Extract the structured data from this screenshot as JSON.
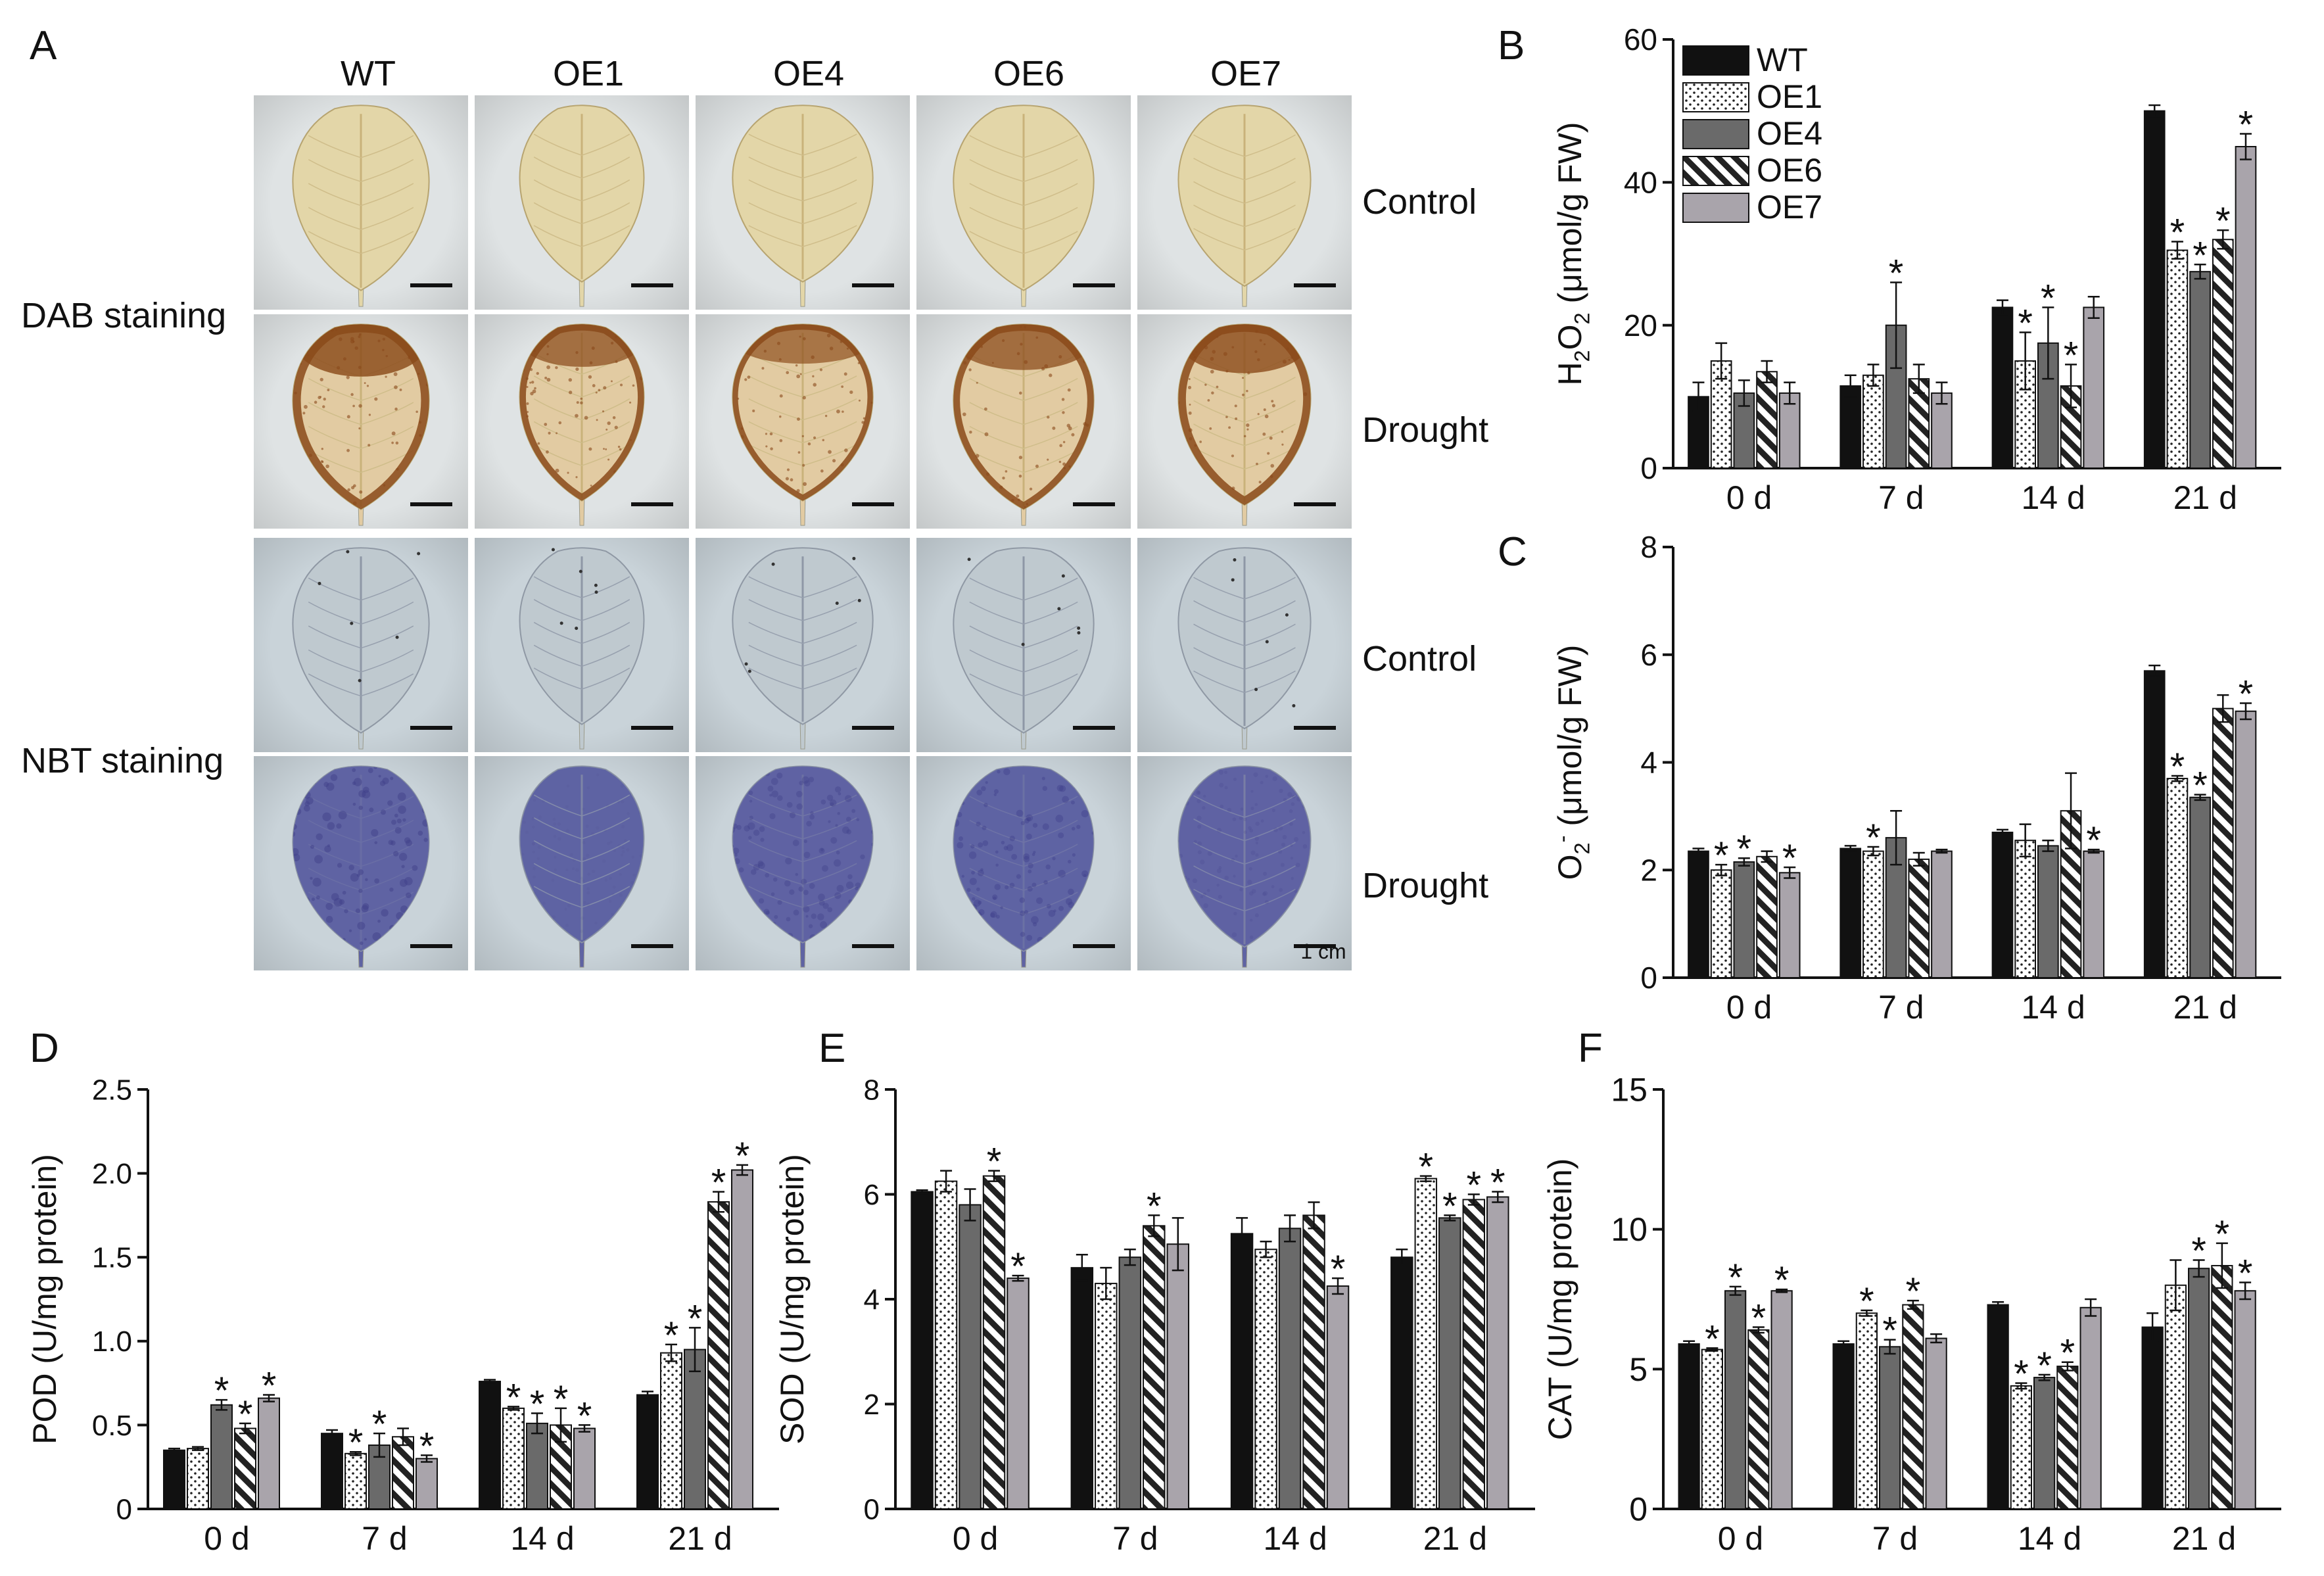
{
  "panel_letters": {
    "A": "A",
    "B": "B",
    "C": "C",
    "D": "D",
    "E": "E",
    "F": "F"
  },
  "photo_panel": {
    "columns": [
      "WT",
      "OE1",
      "OE4",
      "OE6",
      "OE7"
    ],
    "row_labels": [
      "Control",
      "Drought",
      "Control",
      "Drought"
    ],
    "group_labels": [
      "DAB staining",
      "NBT staining"
    ],
    "scale_label": "1 cm",
    "stain_colors": {
      "dab_control": "#e3d6a8",
      "dab_drought": "#e2cba2",
      "dab_brown": "#8a4a1a",
      "nbt_control": "#bfc9cf",
      "nbt_drought": "#5f63a3",
      "background_dab": "#dfe3e4",
      "background_nbt": "#c9d3d9"
    },
    "drought_intensity": {
      "dab": [
        0.9,
        0.55,
        0.4,
        0.6,
        0.8
      ],
      "nbt": [
        0.95,
        0.15,
        0.75,
        0.8,
        0.35
      ]
    }
  },
  "legend_labels": [
    "WT",
    "OE1",
    "OE4",
    "OE6",
    "OE7"
  ],
  "series_styles": [
    {
      "fill": "#111111",
      "pattern": "solid"
    },
    {
      "fill": "#ffffff",
      "pattern": "dots"
    },
    {
      "fill": "#6a6a6a",
      "pattern": "solid"
    },
    {
      "fill": "#ffffff",
      "pattern": "hatch"
    },
    {
      "fill": "#a9a4ab",
      "pattern": "solid"
    }
  ],
  "chart_data": [
    {
      "panel": "B",
      "type": "bar",
      "categories": [
        "0 d",
        "7 d",
        "14 d",
        "21 d"
      ],
      "ylim": [
        0,
        60
      ],
      "yticks": [
        0,
        20,
        40,
        60
      ],
      "ylabel": "H2O2 (μmol/g FW)",
      "legend": "top-left",
      "series": [
        {
          "name": "WT",
          "values": [
            10,
            11.5,
            22.5,
            50
          ],
          "errors": [
            2,
            1.5,
            1,
            0.8
          ],
          "sig": [
            false,
            false,
            false,
            false
          ]
        },
        {
          "name": "OE1",
          "values": [
            15,
            13,
            15,
            30.5
          ],
          "errors": [
            2.5,
            1.5,
            4,
            1.2
          ],
          "sig": [
            false,
            false,
            true,
            true
          ]
        },
        {
          "name": "OE4",
          "values": [
            10.5,
            20,
            17.5,
            27.5
          ],
          "errors": [
            1.8,
            6,
            5,
            1
          ],
          "sig": [
            false,
            true,
            true,
            true
          ]
        },
        {
          "name": "OE6",
          "values": [
            13.5,
            12.5,
            11.5,
            32
          ],
          "errors": [
            1.5,
            2,
            3,
            1.3
          ],
          "sig": [
            false,
            false,
            true,
            true
          ]
        },
        {
          "name": "OE7",
          "values": [
            10.5,
            10.5,
            22.5,
            45
          ],
          "errors": [
            1.5,
            1.5,
            1.5,
            1.8
          ],
          "sig": [
            false,
            false,
            false,
            true
          ]
        }
      ]
    },
    {
      "panel": "C",
      "type": "bar",
      "categories": [
        "0 d",
        "7 d",
        "14 d",
        "21 d"
      ],
      "ylim": [
        0,
        8
      ],
      "yticks": [
        0,
        2,
        4,
        6,
        8
      ],
      "ylabel": "O2- (μmol/g FW)",
      "series": [
        {
          "name": "WT",
          "values": [
            2.35,
            2.4,
            2.7,
            5.7
          ],
          "errors": [
            0.05,
            0.05,
            0.05,
            0.1
          ],
          "sig": [
            false,
            false,
            false,
            false
          ]
        },
        {
          "name": "OE1",
          "values": [
            2.0,
            2.35,
            2.55,
            3.7
          ],
          "errors": [
            0.1,
            0.08,
            0.3,
            0.05
          ],
          "sig": [
            true,
            true,
            false,
            true
          ]
        },
        {
          "name": "OE4",
          "values": [
            2.15,
            2.6,
            2.45,
            3.35
          ],
          "errors": [
            0.07,
            0.5,
            0.1,
            0.05
          ],
          "sig": [
            true,
            false,
            false,
            true
          ]
        },
        {
          "name": "OE6",
          "values": [
            2.25,
            2.2,
            3.1,
            5.0
          ],
          "errors": [
            0.1,
            0.12,
            0.7,
            0.25
          ],
          "sig": [
            false,
            false,
            false,
            false
          ]
        },
        {
          "name": "OE7",
          "values": [
            1.95,
            2.35,
            2.35,
            4.95
          ],
          "errors": [
            0.1,
            0.03,
            0.03,
            0.15
          ],
          "sig": [
            true,
            false,
            true,
            true
          ]
        }
      ]
    },
    {
      "panel": "D",
      "type": "bar",
      "categories": [
        "0 d",
        "7 d",
        "14 d",
        "21 d"
      ],
      "ylim": [
        0,
        2.5
      ],
      "yticks": [
        0,
        0.5,
        1.0,
        1.5,
        2.0,
        2.5
      ],
      "yticklabels": [
        "0",
        "0.5",
        "1.0",
        "1.5",
        "2.0",
        "2.5"
      ],
      "ylabel": "POD (U/mg protein)",
      "series": [
        {
          "name": "WT",
          "values": [
            0.35,
            0.45,
            0.76,
            0.68
          ],
          "errors": [
            0.01,
            0.02,
            0.01,
            0.02
          ],
          "sig": [
            false,
            false,
            false,
            false
          ]
        },
        {
          "name": "OE1",
          "values": [
            0.36,
            0.33,
            0.6,
            0.93
          ],
          "errors": [
            0.01,
            0.01,
            0.01,
            0.05
          ],
          "sig": [
            false,
            true,
            true,
            true
          ]
        },
        {
          "name": "OE4",
          "values": [
            0.62,
            0.38,
            0.51,
            0.95
          ],
          "errors": [
            0.03,
            0.07,
            0.06,
            0.13
          ],
          "sig": [
            true,
            true,
            true,
            true
          ]
        },
        {
          "name": "OE6",
          "values": [
            0.48,
            0.43,
            0.5,
            1.83
          ],
          "errors": [
            0.03,
            0.05,
            0.1,
            0.06
          ],
          "sig": [
            true,
            false,
            true,
            true
          ]
        },
        {
          "name": "OE7",
          "values": [
            0.66,
            0.3,
            0.48,
            2.02
          ],
          "errors": [
            0.02,
            0.02,
            0.02,
            0.03
          ],
          "sig": [
            true,
            true,
            true,
            true
          ]
        }
      ]
    },
    {
      "panel": "E",
      "type": "bar",
      "categories": [
        "0 d",
        "7 d",
        "14 d",
        "21 d"
      ],
      "ylim": [
        0,
        8
      ],
      "yticks": [
        0,
        2,
        4,
        6,
        8
      ],
      "ylabel": "SOD (U/mg protein)",
      "series": [
        {
          "name": "WT",
          "values": [
            6.05,
            4.6,
            5.25,
            4.8
          ],
          "errors": [
            0.03,
            0.25,
            0.3,
            0.15
          ],
          "sig": [
            false,
            false,
            false,
            false
          ]
        },
        {
          "name": "OE1",
          "values": [
            6.25,
            4.3,
            4.95,
            6.3
          ],
          "errors": [
            0.2,
            0.3,
            0.15,
            0.05
          ],
          "sig": [
            false,
            false,
            false,
            true
          ]
        },
        {
          "name": "OE4",
          "values": [
            5.8,
            4.8,
            5.35,
            5.55
          ],
          "errors": [
            0.3,
            0.15,
            0.25,
            0.05
          ],
          "sig": [
            false,
            false,
            false,
            true
          ]
        },
        {
          "name": "OE6",
          "values": [
            6.35,
            5.4,
            5.6,
            5.9
          ],
          "errors": [
            0.1,
            0.2,
            0.25,
            0.1
          ],
          "sig": [
            true,
            true,
            false,
            true
          ]
        },
        {
          "name": "OE7",
          "values": [
            4.4,
            5.05,
            4.25,
            5.95
          ],
          "errors": [
            0.05,
            0.5,
            0.15,
            0.1
          ],
          "sig": [
            true,
            false,
            true,
            true
          ]
        }
      ]
    },
    {
      "panel": "F",
      "type": "bar",
      "categories": [
        "0 d",
        "7 d",
        "14 d",
        "21 d"
      ],
      "ylim": [
        0,
        15
      ],
      "yticks": [
        0,
        5,
        10,
        15
      ],
      "ylabel": "CAT (U/mg protein)",
      "series": [
        {
          "name": "WT",
          "values": [
            5.9,
            5.9,
            7.3,
            6.5
          ],
          "errors": [
            0.1,
            0.1,
            0.1,
            0.5
          ],
          "sig": [
            false,
            false,
            false,
            false
          ]
        },
        {
          "name": "OE1",
          "values": [
            5.7,
            7.0,
            4.4,
            8.0
          ],
          "errors": [
            0.05,
            0.1,
            0.1,
            0.9
          ],
          "sig": [
            true,
            true,
            true,
            false
          ]
        },
        {
          "name": "OE4",
          "values": [
            7.8,
            5.8,
            4.7,
            8.6
          ],
          "errors": [
            0.15,
            0.25,
            0.1,
            0.3
          ],
          "sig": [
            true,
            true,
            true,
            true
          ]
        },
        {
          "name": "OE6",
          "values": [
            6.4,
            7.3,
            5.1,
            8.7
          ],
          "errors": [
            0.1,
            0.15,
            0.15,
            0.8
          ],
          "sig": [
            true,
            true,
            true,
            true
          ]
        },
        {
          "name": "OE7",
          "values": [
            7.8,
            6.1,
            7.2,
            7.8
          ],
          "errors": [
            0.05,
            0.15,
            0.3,
            0.3
          ],
          "sig": [
            true,
            false,
            false,
            true
          ]
        }
      ]
    }
  ]
}
